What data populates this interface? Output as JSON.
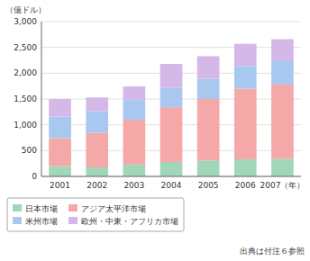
{
  "chart_data": {
    "type": "bar",
    "stacked": true,
    "ylabel": "（億ドル）",
    "categories": [
      "2001",
      "2002",
      "2003",
      "2004",
      "2005",
      "2006",
      "2007（年）"
    ],
    "series": [
      {
        "name": "日本市場",
        "color": "#9fd7b8",
        "values": [
          200,
          175,
          230,
          280,
          305,
          330,
          340
        ]
      },
      {
        "name": "アジア太平洋市場",
        "color": "#f4a8a8",
        "values": [
          540,
          670,
          870,
          1060,
          1195,
          1370,
          1440
        ]
      },
      {
        "name": "米州市場",
        "color": "#a8c8f0",
        "values": [
          420,
          420,
          380,
          380,
          390,
          440,
          470
        ]
      },
      {
        "name": "欧州・中東・アフリカ市場",
        "color": "#d4b8e8",
        "values": [
          340,
          265,
          265,
          460,
          440,
          430,
          410
        ]
      }
    ],
    "ylim": [
      0,
      3000
    ],
    "yticks": [
      0,
      500,
      {
        "value": 1000,
        "label": "1,000"
      },
      {
        "value": 1500,
        "label": "1,500"
      },
      {
        "value": 2000,
        "label": "2,000"
      },
      {
        "value": 2500,
        "label": "2,500"
      },
      {
        "value": 3000,
        "label": "3,000"
      }
    ],
    "grid": true,
    "legend": "bottom",
    "annotations": [
      "出典は付注６参照"
    ]
  }
}
